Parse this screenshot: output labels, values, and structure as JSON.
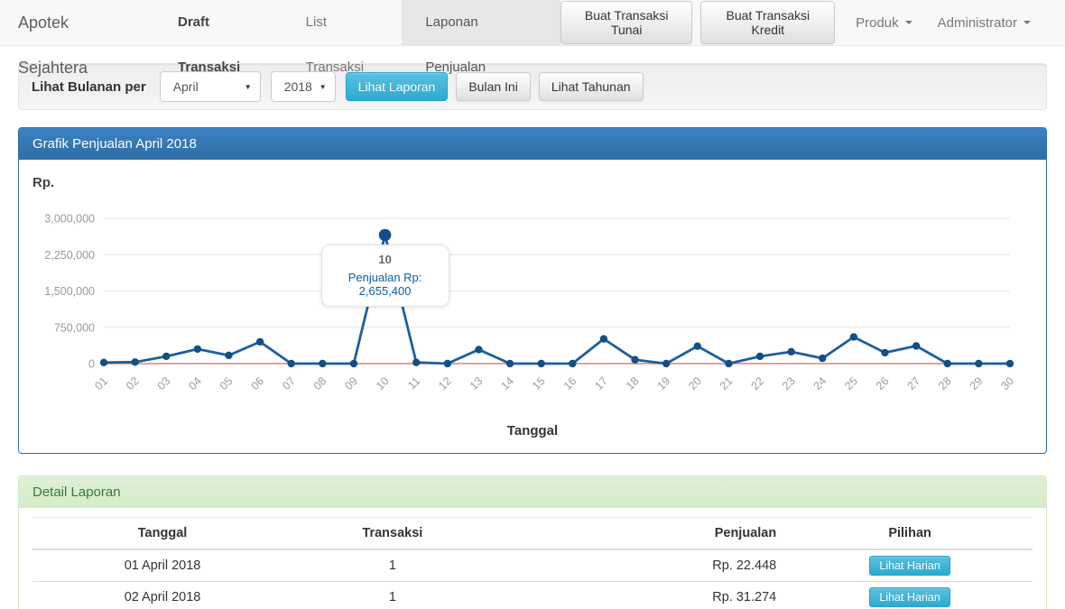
{
  "navbar": {
    "brand": "Apotek Sejahtera",
    "items": [
      {
        "label": "Draft Transaksi"
      },
      {
        "label": "List Transaksi"
      },
      {
        "label": "Laponan Penjualan"
      }
    ],
    "buttons": [
      {
        "label": "Buat Transaksi Tunai"
      },
      {
        "label": "Buat Transaksi Kredit"
      }
    ],
    "dropdowns": [
      {
        "label": "Produk"
      },
      {
        "label": "Administrator"
      }
    ]
  },
  "filter": {
    "label": "Lihat Bulanan per",
    "month_selected": "April",
    "year_selected": "2018",
    "submit_label": "Lihat Laporan",
    "this_month_label": "Bulan Ini",
    "yearly_label": "Lihat Tahunan"
  },
  "chart_panel": {
    "title": "Grafik Penjualan April 2018",
    "y_unit_label": "Rp.",
    "x_axis_title": "Tanggal"
  },
  "chart_data": {
    "type": "line",
    "title": "Grafik Penjualan April 2018",
    "xlabel": "Tanggal",
    "ylabel": "Rp.",
    "x": [
      "01",
      "02",
      "03",
      "04",
      "05",
      "06",
      "07",
      "08",
      "09",
      "10",
      "11",
      "12",
      "13",
      "14",
      "15",
      "16",
      "17",
      "18",
      "19",
      "20",
      "21",
      "22",
      "23",
      "24",
      "25",
      "26",
      "27",
      "28",
      "29",
      "30"
    ],
    "series": [
      {
        "name": "Penjualan",
        "color": "#1d5f9f",
        "point_color": "#134f85",
        "values": [
          22448,
          31274,
          150000,
          300000,
          170000,
          450000,
          0,
          0,
          0,
          2655400,
          25000,
          0,
          290000,
          0,
          0,
          0,
          510000,
          80000,
          0,
          360000,
          0,
          150000,
          245000,
          110000,
          550000,
          225000,
          365000,
          0,
          0,
          0
        ]
      }
    ],
    "ylim": [
      0,
      3000000
    ],
    "yticks": [
      0,
      750000,
      1500000,
      2250000,
      3000000
    ],
    "ytick_labels": [
      "0",
      "750,000",
      "1,500,000",
      "2,250,000",
      "3,000,000"
    ],
    "grid": true,
    "gridline_color": "#e7e7e7",
    "baseline_color": "#dd8276",
    "legend_position": "none",
    "tooltip": {
      "day": "10",
      "text": "Penjualan Rp: 2,655,400",
      "value": 2655400
    }
  },
  "detail_panel": {
    "title": "Detail Laporan",
    "columns": [
      "Tanggal",
      "Transaksi",
      "Penjualan",
      "Pilihan"
    ],
    "action_label": "Lihat Harian",
    "rows": [
      {
        "tanggal": "01 April 2018",
        "transaksi": "1",
        "penjualan": "Rp. 22.448"
      },
      {
        "tanggal": "02 April 2018",
        "transaksi": "1",
        "penjualan": "Rp. 31.274"
      }
    ]
  },
  "colors": {
    "primary_blue": "#2e6da4",
    "success_green_text": "#3c763d",
    "success_green_bg": "#dff0d8",
    "info_cyan": "#5bc0de",
    "chart_line_blue": "#1d5f9f",
    "chart_baseline_red": "#dd8276"
  }
}
